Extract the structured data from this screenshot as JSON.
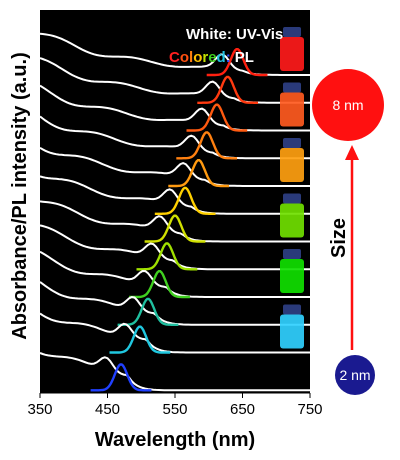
{
  "chart_data": {
    "type": "line",
    "title": "",
    "xlabel": "Wavelength (nm)",
    "ylabel": "Absorbance/PL intensity (a.u.)",
    "xlim": [
      350,
      750
    ],
    "xticks": [
      350,
      450,
      550,
      650,
      750
    ],
    "xtick_labels": [
      "350",
      "450",
      "550",
      "650",
      "750"
    ],
    "grid": false,
    "background": "#000000",
    "legend": {
      "placement": "top-right",
      "line1": "White: UV-Vis",
      "line2_colored": [
        "C",
        "o",
        "l",
        "o",
        "r",
        "e",
        "d",
        ":"
      ],
      "line2_suffix": "PL",
      "line2_colors": [
        "#ff2020",
        "#ff5010",
        "#ff8010",
        "#ffc000",
        "#c0e000",
        "#40d020",
        "#20c0e0",
        "#3050ff"
      ]
    },
    "absorbance_color": "#ffffff",
    "series": [
      {
        "pl_peak_nm": 642,
        "pl_color": "#ff2010",
        "vial_color": "#ff1a1a"
      },
      {
        "pl_peak_nm": 628,
        "pl_color": "#ff3a10",
        "vial_color": null
      },
      {
        "pl_peak_nm": 612,
        "pl_color": "#ff5a10",
        "vial_color": "#ff5a20"
      },
      {
        "pl_peak_nm": 597,
        "pl_color": "#ff8010",
        "vial_color": null
      },
      {
        "pl_peak_nm": 585,
        "pl_color": "#ff9a10",
        "vial_color": "#ffa010"
      },
      {
        "pl_peak_nm": 565,
        "pl_color": "#ffd000",
        "vial_color": null
      },
      {
        "pl_peak_nm": 550,
        "pl_color": "#d0e000",
        "vial_color": "#70e000"
      },
      {
        "pl_peak_nm": 538,
        "pl_color": "#a0e000",
        "vial_color": null
      },
      {
        "pl_peak_nm": 527,
        "pl_color": "#40d020",
        "vial_color": "#10e000"
      },
      {
        "pl_peak_nm": 510,
        "pl_color": "#20c0a0",
        "vial_color": null
      },
      {
        "pl_peak_nm": 498,
        "pl_color": "#20c8e0",
        "vial_color": "#30d0ff"
      },
      {
        "pl_peak_nm": 470,
        "pl_color": "#2040ff",
        "vial_color": null
      }
    ]
  },
  "size_panel": {
    "title": "Size",
    "large_label": "8 nm",
    "small_label": "2 nm",
    "large_color": "#ff1010",
    "small_color": "#1a1a90",
    "arrow_color": "#ff1010"
  }
}
